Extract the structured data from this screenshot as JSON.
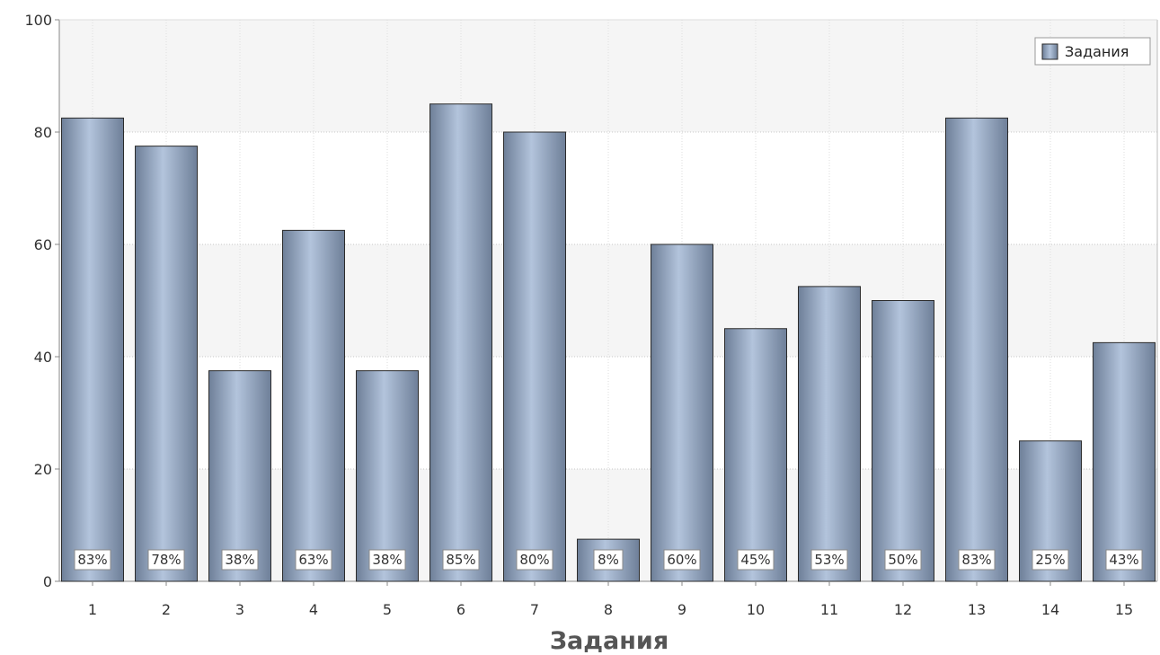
{
  "chart_data": {
    "type": "bar",
    "categories": [
      "1",
      "2",
      "3",
      "4",
      "5",
      "6",
      "7",
      "8",
      "9",
      "10",
      "11",
      "12",
      "13",
      "14",
      "15"
    ],
    "series": [
      {
        "name": "Задания",
        "values": [
          82.5,
          77.5,
          37.5,
          62.5,
          37.5,
          85,
          80,
          7.5,
          60,
          45,
          52.5,
          50,
          82.5,
          25,
          42.5
        ],
        "data_labels": [
          "83%",
          "78%",
          "38%",
          "63%",
          "38%",
          "85%",
          "80%",
          "8%",
          "60%",
          "45%",
          "53%",
          "50%",
          "83%",
          "25%",
          "43%"
        ]
      }
    ],
    "xlabel": "Задания",
    "ylabel": "",
    "ylim": [
      0,
      100
    ],
    "yticks": [
      "0",
      "20",
      "40",
      "60",
      "80",
      "100"
    ],
    "grid": true,
    "legend_position": "top-right",
    "colors": {
      "bar_light": "#b3c4dc",
      "bar_dark": "#6e7f98",
      "bar_edge": "#2b2b2b",
      "band_alt": "#f5f5f5",
      "grid": "#c8c8c8",
      "axis": "#888888"
    }
  }
}
